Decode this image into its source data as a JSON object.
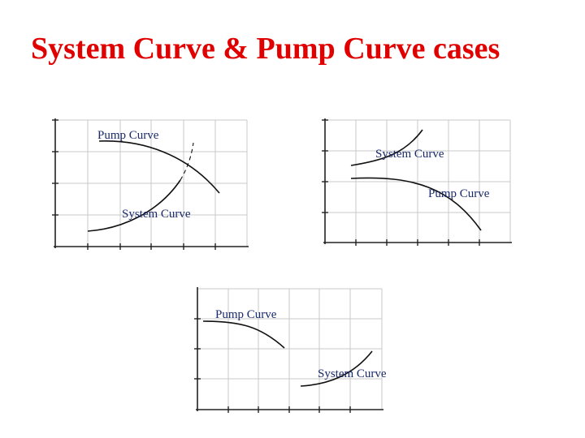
{
  "slide": {
    "title": "System Curve & Pump Curve cases"
  },
  "graphs": [
    {
      "pump_label": "Pump Curve",
      "system_label": "System Curve"
    },
    {
      "pump_label": "Pump Curve",
      "system_label": "System Curve"
    },
    {
      "pump_label": "Pump Curve",
      "system_label": "System Curve"
    }
  ]
}
